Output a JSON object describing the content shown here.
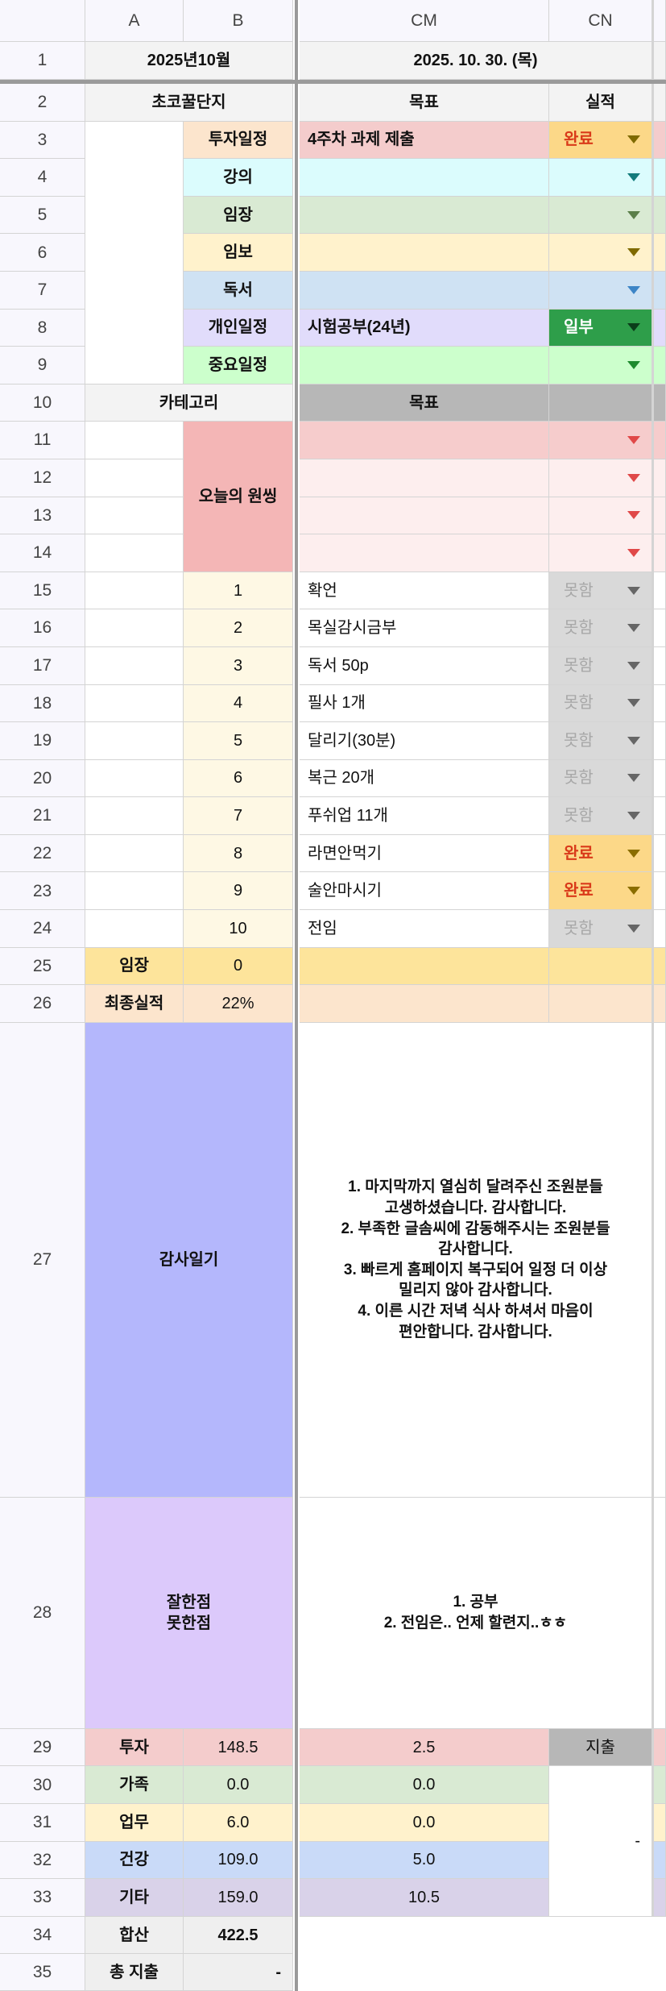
{
  "columns": [
    "A",
    "B",
    "CM",
    "CN"
  ],
  "row_numbers": [
    "1",
    "2",
    "3",
    "4",
    "5",
    "6",
    "7",
    "8",
    "9",
    "10",
    "11",
    "12",
    "13",
    "14",
    "15",
    "16",
    "17",
    "18",
    "19",
    "20",
    "21",
    "22",
    "23",
    "24",
    "25",
    "26",
    "27",
    "28",
    "29",
    "30",
    "31",
    "32",
    "33",
    "34",
    "35"
  ],
  "header": {
    "month": "2025년10월",
    "date": "2025. 10. 30. (목)"
  },
  "row2": {
    "title": "초코꿀단지",
    "goal": "목표",
    "result": "실적"
  },
  "schedule": [
    {
      "category": "투자일정",
      "goal": "4주차 과제 제출",
      "status": "완료"
    },
    {
      "category": "강의",
      "goal": "",
      "status": ""
    },
    {
      "category": "임장",
      "goal": "",
      "status": ""
    },
    {
      "category": "임보",
      "goal": "",
      "status": ""
    },
    {
      "category": "독서",
      "goal": "",
      "status": ""
    },
    {
      "category": "개인일정",
      "goal": "시험공부(24년)",
      "status": "일부"
    },
    {
      "category": "중요일정",
      "goal": "",
      "status": ""
    }
  ],
  "one_thing": {
    "category_header": "카테고리",
    "goal_header": "목표",
    "label": "오늘의 원씽"
  },
  "tasks": [
    {
      "num": "1",
      "goal": "확언",
      "status": "못함"
    },
    {
      "num": "2",
      "goal": "목실감시금부",
      "status": "못함"
    },
    {
      "num": "3",
      "goal": "독서 50p",
      "status": "못함"
    },
    {
      "num": "4",
      "goal": "필사 1개",
      "status": "못함"
    },
    {
      "num": "5",
      "goal": "달리기(30분)",
      "status": "못함"
    },
    {
      "num": "6",
      "goal": "복근 20개",
      "status": "못함"
    },
    {
      "num": "7",
      "goal": "푸쉬업 11개",
      "status": "못함"
    },
    {
      "num": "8",
      "goal": "라면안먹기",
      "status": "완료"
    },
    {
      "num": "9",
      "goal": "술안마시기",
      "status": "완료"
    },
    {
      "num": "10",
      "goal": "전임",
      "status": "못함"
    }
  ],
  "summary": {
    "imjang_label": "임장",
    "imjang_value": "0",
    "final_label": "최종실적",
    "final_value": "22%"
  },
  "gratitude": {
    "label": "감사일기",
    "text": "1. 마지막까지 열심히 달려주신 조원분들\n고생하셨습니다. 감사합니다.\n2. 부족한 글솜씨에 감동해주시는 조원분들\n감사합니다.\n3. 빠르게 홈페이지 복구되어 일정 더 이상\n밀리지 않아 감사합니다.\n4. 이른 시간 저녁 식사 하셔서 마음이\n편안합니다. 감사합니다."
  },
  "review": {
    "label": "잘한점\n못한점",
    "text": "1. 공부\n2. 전임은.. 언제 할련지..ㅎㅎ"
  },
  "expenses": {
    "items": [
      {
        "category": "투자",
        "total": "148.5",
        "today": "2.5"
      },
      {
        "category": "가족",
        "total": "0.0",
        "today": "0.0"
      },
      {
        "category": "업무",
        "total": "6.0",
        "today": "0.0"
      },
      {
        "category": "건강",
        "total": "109.0",
        "today": "5.0"
      },
      {
        "category": "기타",
        "total": "159.0",
        "today": "10.5"
      }
    ],
    "spend_label": "지출",
    "spend_value": "-",
    "sum_label": "합산",
    "sum_value": "422.5",
    "total_spend_label": "총 지출",
    "total_spend_value": "-"
  },
  "colors": {
    "done_text": "#d93a1a",
    "done_bg": "#fcd888",
    "partial_bg": "#2e9e4a",
    "not_done_bg": "#d9d9d9"
  }
}
